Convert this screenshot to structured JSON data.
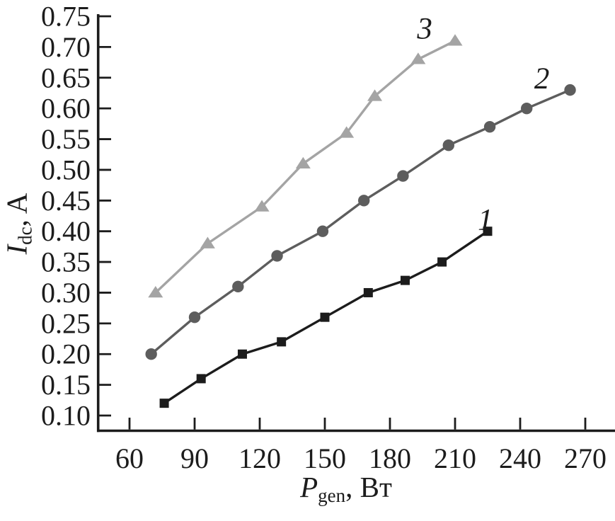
{
  "figure": {
    "background": "#ffffff",
    "text_color": "#1c1c1c"
  },
  "chart_data": {
    "type": "line",
    "title": "",
    "xlabel": {
      "symbol": "P",
      "subscript": "gen",
      "unit": ", Вт"
    },
    "ylabel": {
      "symbol": "I",
      "subscript": "dc",
      "unit": ", A"
    },
    "grid": false,
    "legend": "inline curve labels",
    "axis_color": "#1c1c1c",
    "xlim": [
      45,
      284
    ],
    "ylim": [
      0.075,
      0.75
    ],
    "x_ticks": [
      60,
      90,
      120,
      150,
      180,
      210,
      240,
      270
    ],
    "y_ticks": [
      0.1,
      0.15,
      0.2,
      0.25,
      0.3,
      0.35,
      0.4,
      0.45,
      0.5,
      0.55,
      0.6,
      0.65,
      0.7,
      0.75
    ],
    "y_tick_labels": [
      "0.10",
      "0.15",
      "0.20",
      "0.25",
      "0.30",
      "0.35",
      "0.40",
      "0.45",
      "0.50",
      "0.55",
      "0.60",
      "0.65",
      "0.70",
      "0.75"
    ],
    "series": [
      {
        "name": "1",
        "marker": "square",
        "color": "#1c1c1c",
        "points": [
          [
            76,
            0.12
          ],
          [
            93,
            0.16
          ],
          [
            112,
            0.2
          ],
          [
            130,
            0.22
          ],
          [
            150,
            0.26
          ],
          [
            170,
            0.3
          ],
          [
            187,
            0.32
          ],
          [
            204,
            0.35
          ],
          [
            225,
            0.4
          ]
        ]
      },
      {
        "name": "2",
        "marker": "circle",
        "color": "#5d5d5d",
        "points": [
          [
            70,
            0.2
          ],
          [
            90,
            0.26
          ],
          [
            110,
            0.31
          ],
          [
            128,
            0.36
          ],
          [
            149,
            0.4
          ],
          [
            168,
            0.45
          ],
          [
            186,
            0.49
          ],
          [
            207,
            0.54
          ],
          [
            226,
            0.57
          ],
          [
            243,
            0.6
          ],
          [
            263,
            0.63
          ]
        ]
      },
      {
        "name": "3",
        "marker": "triangle-up",
        "color": "#a4a4a4",
        "points": [
          [
            72,
            0.3
          ],
          [
            96,
            0.38
          ],
          [
            121,
            0.44
          ],
          [
            140,
            0.51
          ],
          [
            160,
            0.56
          ],
          [
            173,
            0.62
          ],
          [
            193,
            0.68
          ],
          [
            210,
            0.71
          ]
        ]
      }
    ],
    "annotations": [
      {
        "text": "1",
        "x": 224,
        "y": 0.42
      },
      {
        "text": "2",
        "x": 250,
        "y": 0.65
      },
      {
        "text": "3",
        "x": 196,
        "y": 0.731
      }
    ]
  }
}
